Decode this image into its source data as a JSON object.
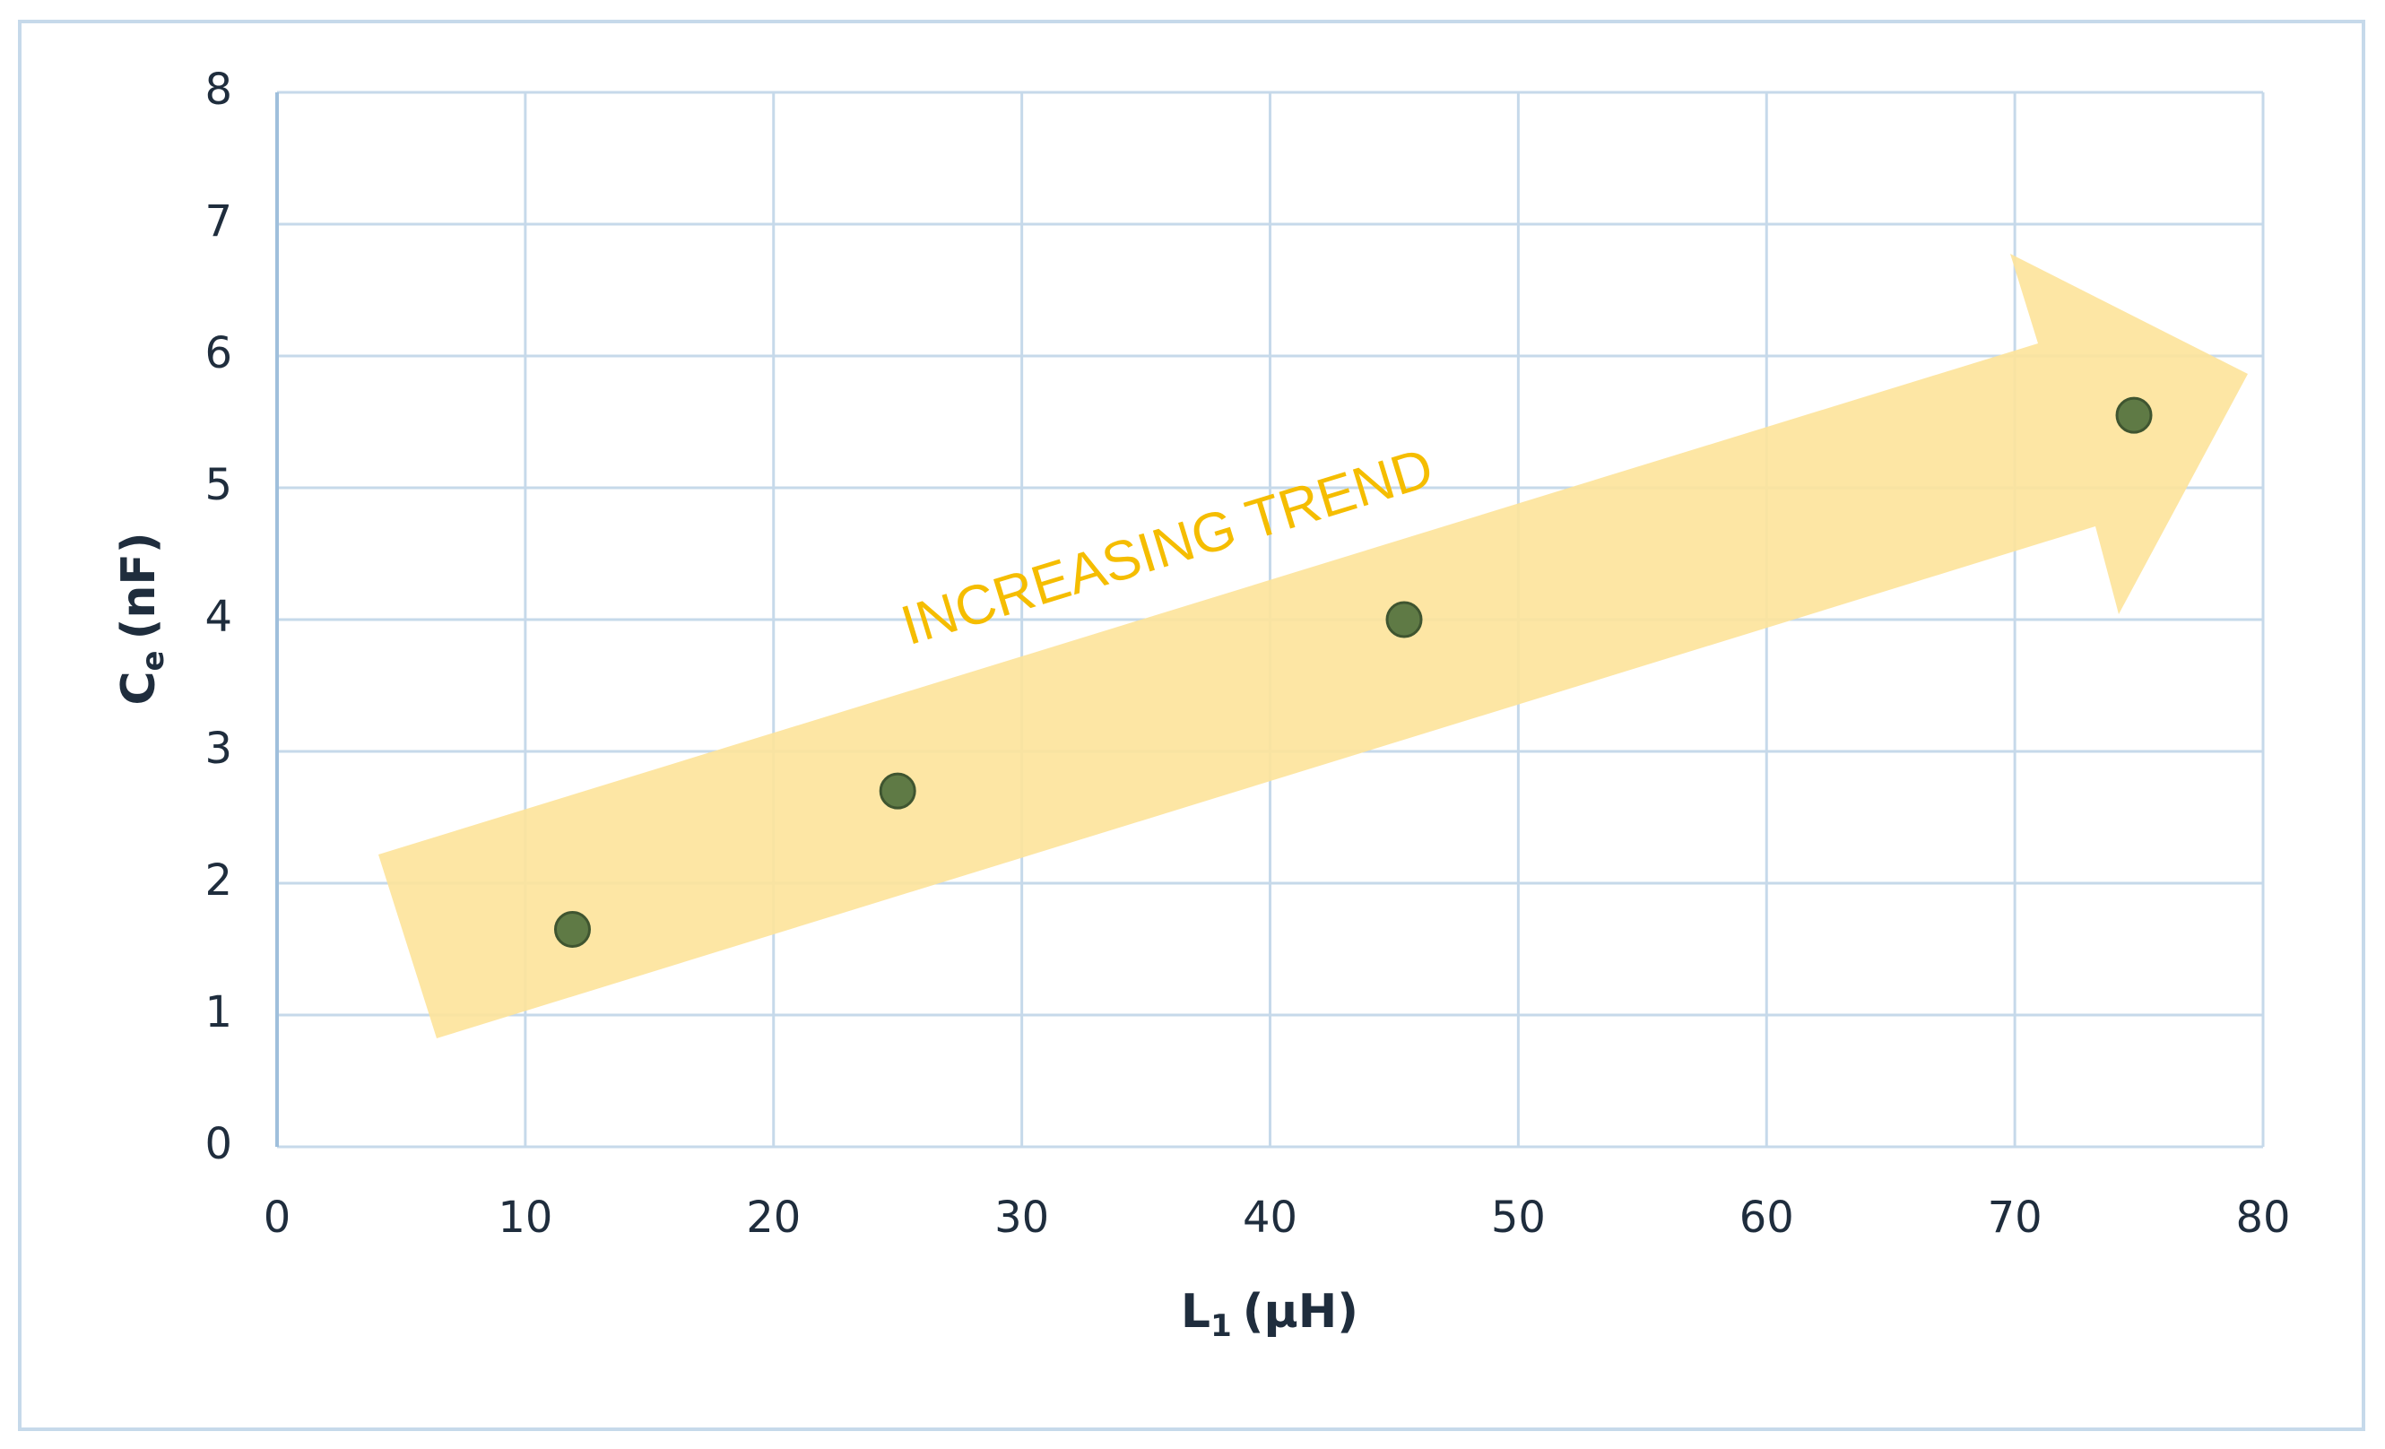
{
  "chart_data": {
    "type": "scatter",
    "x_label": {
      "main": "L",
      "sub": "1",
      "unit": "(μH)"
    },
    "y_label": {
      "main": "C",
      "sub": "e",
      "unit": "(nF)"
    },
    "annotation": "INCREASING TREND",
    "series": [
      {
        "color": "#5f7a45",
        "x": [
          11.9,
          25,
          45.4,
          74.8
        ],
        "values": [
          1.65,
          2.7,
          4.0,
          5.55
        ]
      }
    ],
    "xlim": [
      0,
      80
    ],
    "xticks": [
      0,
      10,
      20,
      30,
      40,
      50,
      60,
      70,
      80
    ],
    "ylim": [
      0,
      8
    ],
    "yticks": [
      0,
      1,
      2,
      3,
      4,
      5,
      6,
      7,
      8
    ],
    "grid": true
  }
}
